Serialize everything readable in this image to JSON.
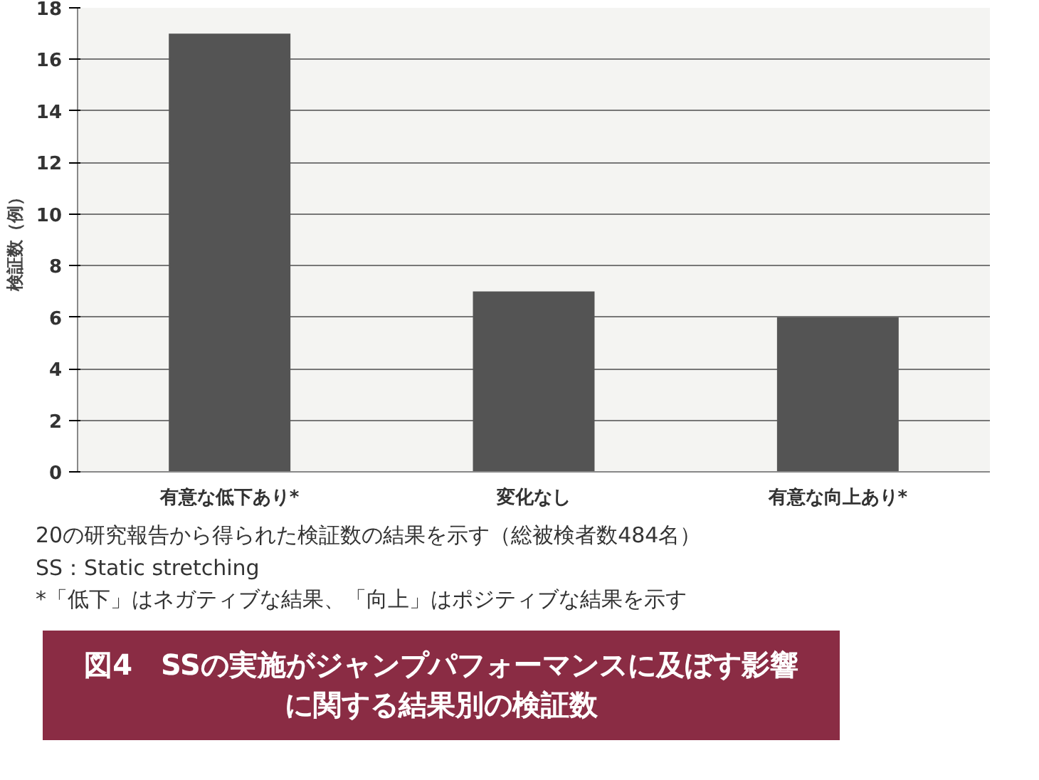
{
  "chart_data": {
    "type": "bar",
    "title": "図4　SSの実施がジャンプパフォーマンスに及ぼす影響に関する結果別の検証数",
    "ylabel": "検証数（例）",
    "categories": [
      "有意な低下あり*",
      "変化なし",
      "有意な向上あり*"
    ],
    "values": [
      17,
      7,
      6
    ],
    "color": "#545454",
    "ylim": [
      0,
      18
    ],
    "yticks": [
      0,
      2,
      4,
      6,
      8,
      10,
      12,
      14,
      16,
      18
    ],
    "grid": "y",
    "annotations": [
      "20の研究報告から得られた検証数の結果を示す（総被検者数484名）",
      "SS：Static stretching",
      "*「低下」はネガティブな結果、「向上」はポジティブな結果を示す"
    ]
  }
}
